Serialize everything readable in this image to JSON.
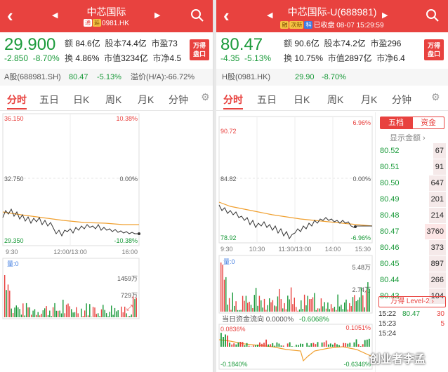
{
  "left": {
    "title": "中芯国际",
    "subtitle_tags": [
      "通",
      "延"
    ],
    "subtitle_code": "0981.HK",
    "price": "29.900",
    "change": "-2.850",
    "change_pct": "-8.70%",
    "stats_rows": [
      [
        "额",
        "84.6亿",
        "股本",
        "74.4亿",
        "市盈",
        "73"
      ],
      [
        "换",
        "4.86%",
        "市值",
        "3234亿",
        "市净",
        "4.5"
      ]
    ],
    "wd_button": [
      "万得",
      "盘口"
    ],
    "ref": {
      "name": "A股(688981.SH)",
      "price": "80.47",
      "pct": "-5.13%",
      "premium_label": "溢价(H/A):",
      "premium": "-66.72%"
    },
    "tabs": [
      "分时",
      "五日",
      "日K",
      "周K",
      "月K",
      "分钟"
    ],
    "chart": {
      "y_left": [
        "36.150",
        "32.750",
        "29.350"
      ],
      "y_right": [
        "10.38%",
        "0.00%",
        "-10.38%"
      ],
      "x_labels": [
        "9:30",
        "12:00/13:00",
        "16:00"
      ],
      "vol_label": "量:0",
      "vol_ticks": [
        "1459万",
        "729万"
      ]
    },
    "colors": {
      "price_line": "#333333",
      "avg_line": "#f0a030",
      "up": "#e8423f",
      "down": "#1a9a3a"
    }
  },
  "right": {
    "title": "中芯国际-U(688981)",
    "subtitle_tags": [
      "融",
      "次新",
      "科"
    ],
    "subtitle_status": "已收盘",
    "subtitle_time": "08-07 15:29:59",
    "price": "80.47",
    "change": "-4.35",
    "change_pct": "-5.13%",
    "stats_rows": [
      [
        "额",
        "90.6亿",
        "股本",
        "74.2亿",
        "市盈",
        "296"
      ],
      [
        "换",
        "10.75%",
        "市值",
        "2897亿",
        "市净",
        "6.4"
      ]
    ],
    "wd_button": [
      "万得",
      "盘口"
    ],
    "ref": {
      "name": "H股(0981.HK)",
      "price": "29.90",
      "pct": "-8.70%"
    },
    "tabs": [
      "分时",
      "五日",
      "日K",
      "周K",
      "月K",
      "分钟"
    ],
    "chart": {
      "y_left": [
        "90.72",
        "84.82",
        "78.92"
      ],
      "y_right": [
        "6.96%",
        "0.00%",
        "-6.96%"
      ],
      "x_labels": [
        "9:30",
        "10:30",
        "11:30/13:00",
        "14:00",
        "15:30"
      ],
      "vol_label": "量:0",
      "vol_ticks": [
        "5.48万",
        "2.74万"
      ],
      "flow_label": "当日资金流向 0.0000%",
      "flow_value": "-0.6068%",
      "flow_ticks": [
        "0.0836%",
        "0.1051%",
        "-0.1840%",
        "-0.6346%"
      ]
    },
    "orderbook": {
      "tabs": [
        "五档",
        "资金"
      ],
      "amount_toggle": "显示金额",
      "rows": [
        {
          "price": "80.52",
          "vol": "67"
        },
        {
          "price": "80.51",
          "vol": "91"
        },
        {
          "price": "80.50",
          "vol": "647"
        },
        {
          "price": "80.49",
          "vol": "201"
        },
        {
          "price": "80.48",
          "vol": "214"
        },
        {
          "price": "80.47",
          "vol": "3760"
        },
        {
          "price": "80.46",
          "vol": "373"
        },
        {
          "price": "80.45",
          "vol": "897"
        },
        {
          "price": "80.44",
          "vol": "266"
        },
        {
          "price": "80.43",
          "vol": "104"
        }
      ],
      "level2": "万得 Level-2",
      "ticks": [
        {
          "time": "15:22",
          "price": "80.47",
          "vol": "30"
        },
        {
          "time": "15:23",
          "price": "",
          "vol": "5"
        },
        {
          "time": "15:24",
          "price": "",
          "vol": ""
        }
      ]
    },
    "watermark": "创业者李孟"
  }
}
